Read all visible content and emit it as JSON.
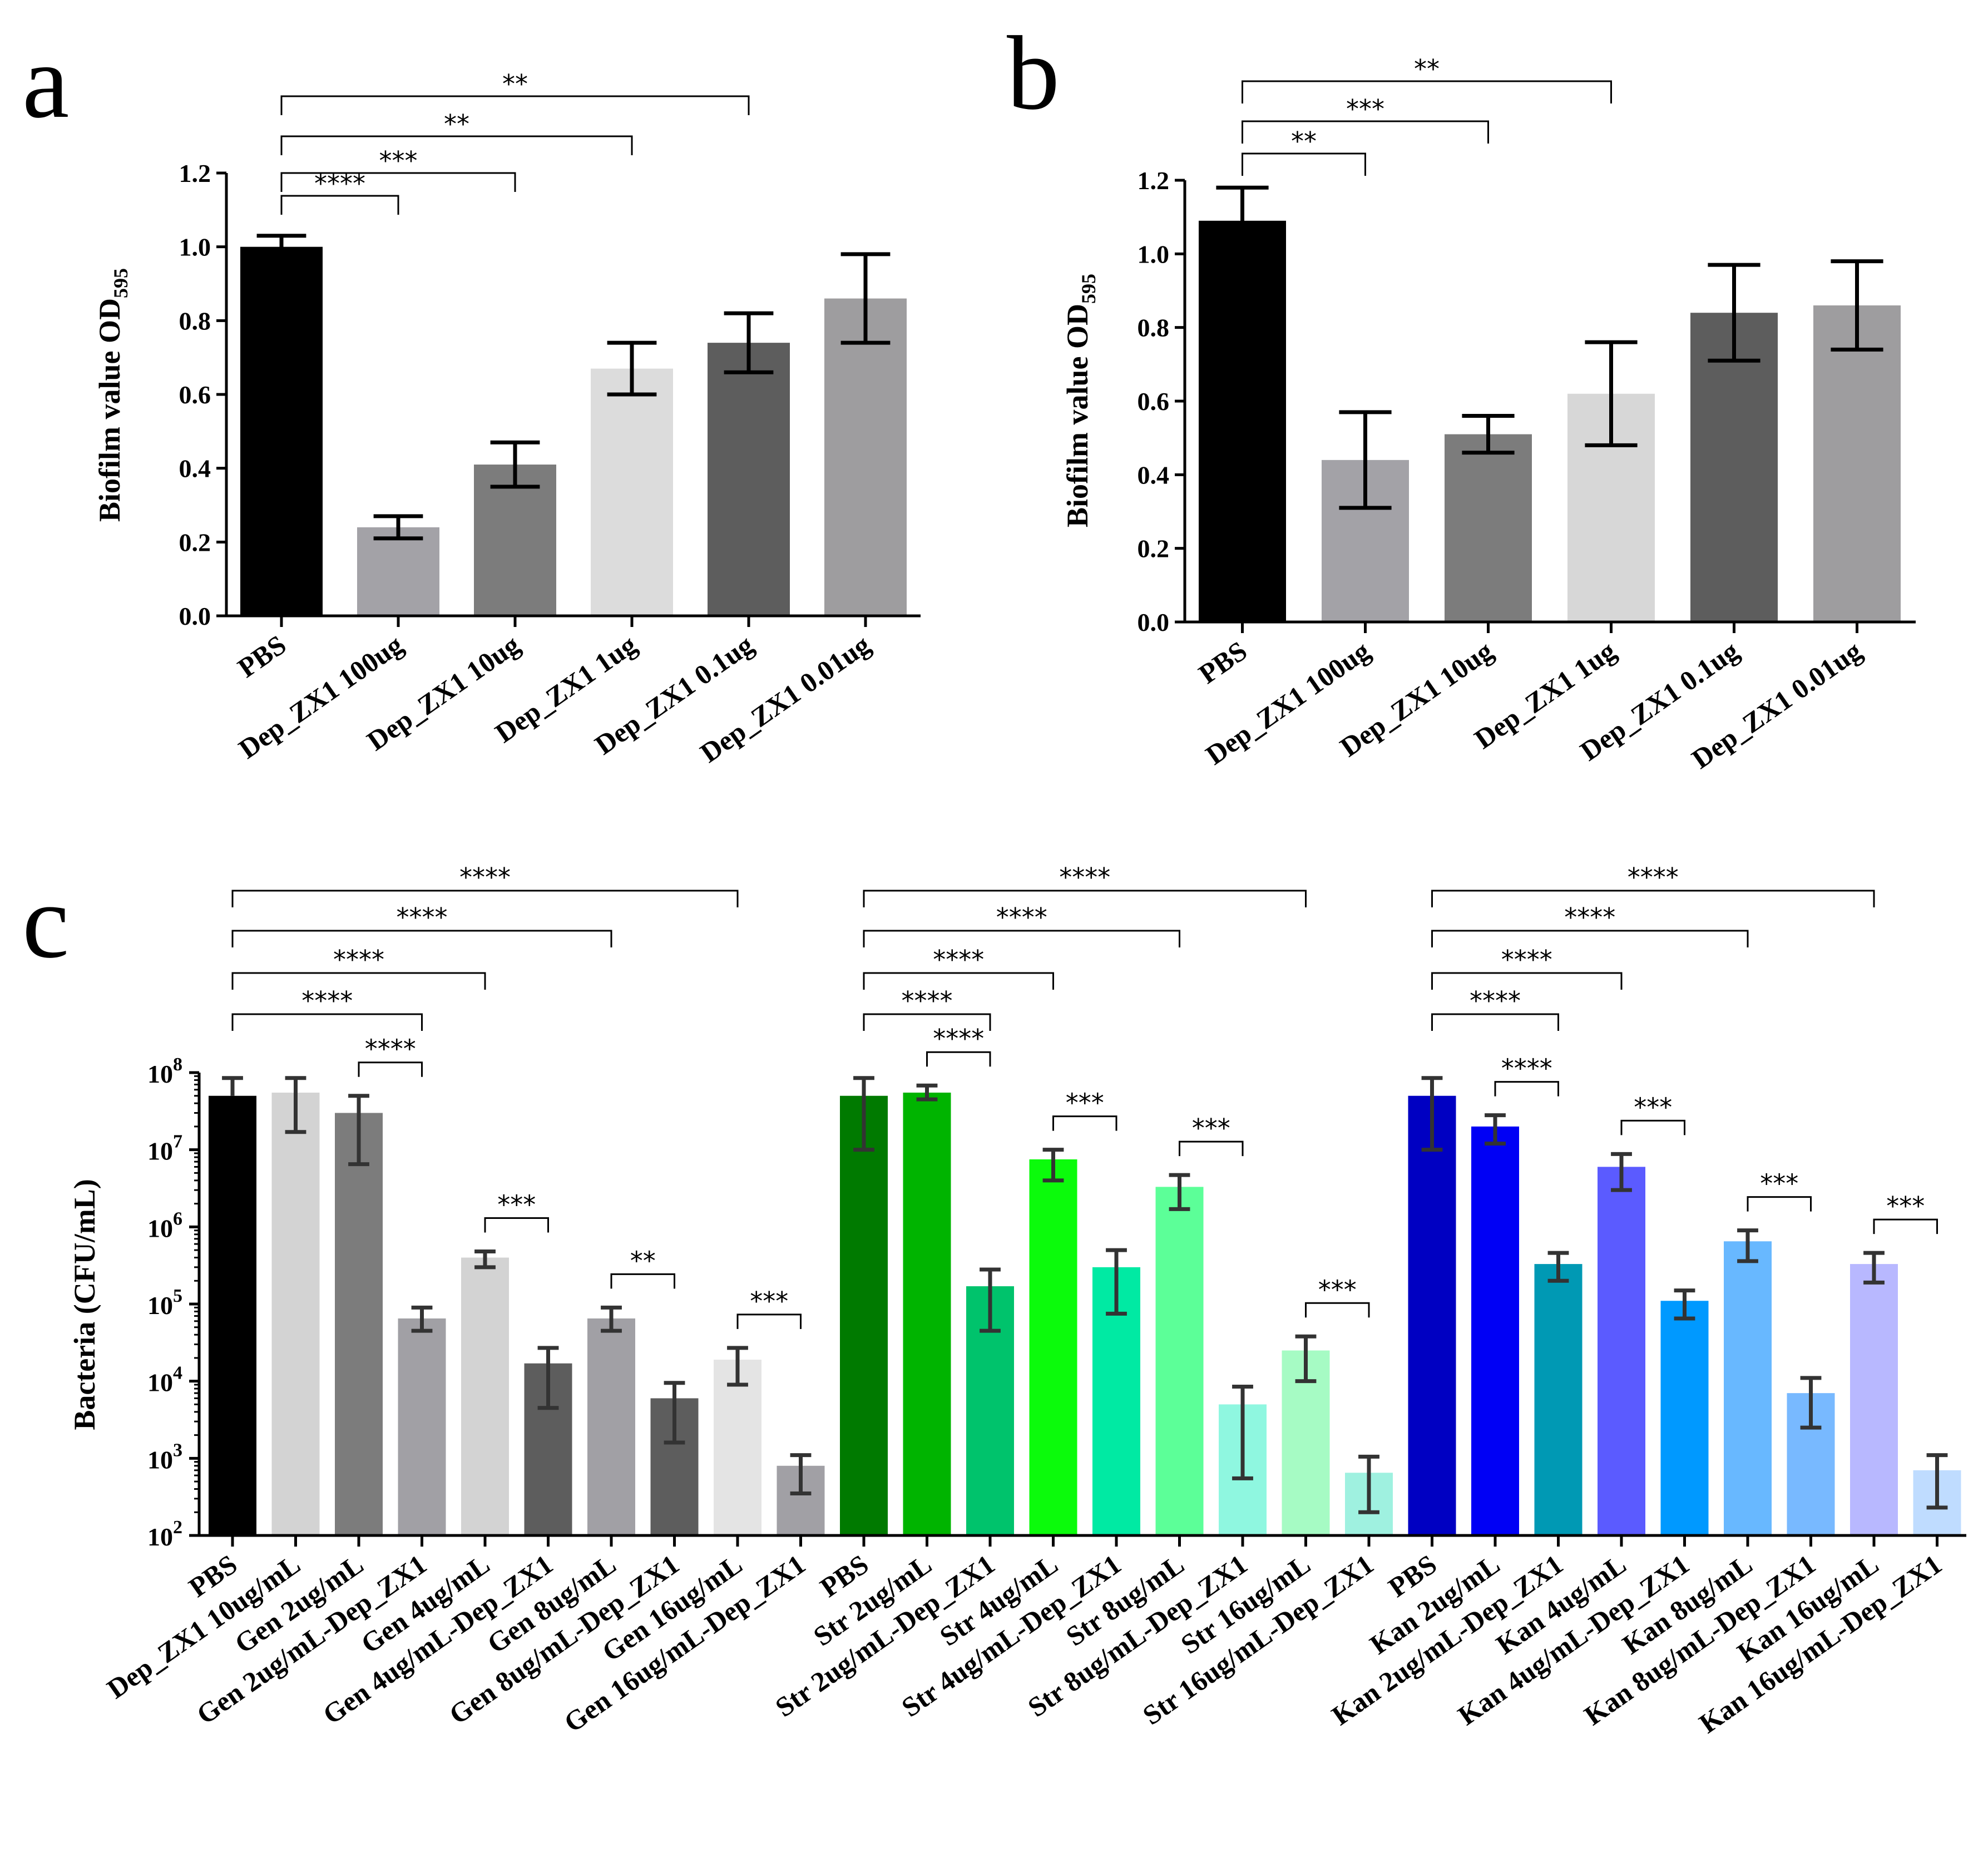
{
  "chart_data": [
    {
      "panel": "a",
      "type": "bar",
      "ylabel": "Biofilm value OD",
      "ylabel_subscript": "595",
      "ylim": [
        0,
        1.2
      ],
      "yticks": [
        "0.0",
        "0.2",
        "0.4",
        "0.6",
        "0.8",
        "1.0",
        "1.2"
      ],
      "categories": [
        "PBS",
        "Dep_ZX1 100ug",
        "Dep_ZX1 10ug",
        "Dep_ZX1 1ug",
        "Dep_ZX1 0.1ug",
        "Dep_ZX1 0.01ug"
      ],
      "values": [
        1.0,
        0.24,
        0.41,
        0.67,
        0.74,
        0.86
      ],
      "errors": [
        0.03,
        0.03,
        0.06,
        0.07,
        0.08,
        0.12
      ],
      "colors": [
        "#000000",
        "#a3a2a7",
        "#7c7c7c",
        "#dcdcdc",
        "#5d5d5d",
        "#9e9d9f"
      ],
      "comparisons": [
        {
          "from": 0,
          "to": 1,
          "label": "****"
        },
        {
          "from": 0,
          "to": 2,
          "label": "***"
        },
        {
          "from": 0,
          "to": 3,
          "label": "**"
        },
        {
          "from": 0,
          "to": 4,
          "label": "**"
        }
      ]
    },
    {
      "panel": "b",
      "type": "bar",
      "ylabel": "Biofilm value OD",
      "ylabel_subscript": "595",
      "ylim": [
        0,
        1.2
      ],
      "yticks": [
        "0.0",
        "0.2",
        "0.4",
        "0.6",
        "0.8",
        "1.0",
        "1.2"
      ],
      "categories": [
        "PBS",
        "Dep_ZX1 100ug",
        "Dep_ZX1 10ug",
        "Dep_ZX1 1ug",
        "Dep_ZX1 0.1ug",
        "Dep_ZX1 0.01ug"
      ],
      "values": [
        1.09,
        0.44,
        0.51,
        0.62,
        0.84,
        0.86
      ],
      "errors": [
        0.09,
        0.13,
        0.05,
        0.14,
        0.13,
        0.12
      ],
      "colors": [
        "#000000",
        "#a3a2a7",
        "#7c7c7c",
        "#d7d7d7",
        "#5d5d5d",
        "#9e9d9f"
      ],
      "comparisons": [
        {
          "from": 0,
          "to": 1,
          "label": "**"
        },
        {
          "from": 0,
          "to": 2,
          "label": "***"
        },
        {
          "from": 0,
          "to": 3,
          "label": "**"
        }
      ]
    },
    {
      "panel": "c",
      "type": "bar",
      "yscale": "log",
      "ylabel": "Bacteria (CFU/mL)",
      "ylim": [
        100,
        100000000
      ],
      "ytick_base": "10",
      "ytick_exponents": [
        "2",
        "3",
        "4",
        "5",
        "6",
        "7",
        "8"
      ],
      "categories": [
        "PBS",
        "Dep_ZX1 10ug/mL",
        "Gen 2ug/mL",
        "Gen 2ug/mL-Dep_ZX1",
        "Gen 4ug/mL",
        "Gen 4ug/mL-Dep_ZX1",
        "Gen 8ug/mL",
        "Gen 8ug/mL-Dep_ZX1",
        "Gen 16ug/mL",
        "Gen 16ug/mL-Dep_ZX1",
        "PBS",
        "Str 2ug/mL",
        "Str 2ug/mL-Dep_ZX1",
        "Str 4ug/mL",
        "Str 4ug/mL-Dep_ZX1",
        "Str 8ug/mL",
        "Str 8ug/mL-Dep_ZX1",
        "Str 16ug/mL",
        "Str 16ug/mL-Dep_ZX1",
        "PBS",
        "Kan 2ug/mL",
        "Kan 2ug/mL-Dep_ZX1",
        "Kan 4ug/mL",
        "Kan 4ug/mL-Dep_ZX1",
        "Kan 8ug/mL",
        "Kan 8ug/mL-Dep_ZX1",
        "Kan 16ug/mL",
        "Kan 16ug/mL-Dep_ZX1"
      ],
      "values": [
        50000000,
        55000000,
        30000000,
        65000,
        400000,
        17000,
        65000,
        6000,
        19000,
        800,
        50000000,
        55000000,
        170000,
        7500000,
        300000,
        3300000,
        5000,
        25000,
        650,
        50000000,
        20000000,
        330000,
        6000000,
        110000,
        650000,
        7000,
        330000,
        700
      ],
      "error_low": [
        null,
        17000000,
        6500000,
        45000,
        300000,
        4500,
        45000,
        1600,
        9000,
        350,
        10000000,
        45000000,
        45000,
        4000000,
        75000,
        1700000,
        550,
        10000,
        200,
        10000000,
        12000000,
        200000,
        3000000,
        65000,
        360000,
        2500,
        190000,
        230
      ],
      "error_high": [
        85000000,
        85000000,
        50000000,
        90000,
        480000,
        27000,
        90000,
        9500,
        27000,
        1100,
        85000000,
        68000000,
        280000,
        10000000,
        500000,
        4700000,
        8500,
        38000,
        1050,
        85000000,
        28000000,
        460000,
        8800000,
        150000,
        900000,
        11000,
        460000,
        1100
      ],
      "colors": [
        "#000000",
        "#d3d3d3",
        "#7c7c7c",
        "#a1a0a5",
        "#d3d3d3",
        "#5d5d5d",
        "#a1a0a5",
        "#5d5d5d",
        "#e4e4e4",
        "#a1a0a5",
        "#007a00",
        "#00b400",
        "#00c36c",
        "#0bfb0b",
        "#00eaa3",
        "#5cff98",
        "#8ff7e0",
        "#a6fbc4",
        "#9ff1e0",
        "#0000c2",
        "#0000f5",
        "#0099b4",
        "#5b5bff",
        "#0099ff",
        "#68b8ff",
        "#78b9ff",
        "#b8b8ff",
        "#bfdcff"
      ],
      "group_starts": [
        0,
        10,
        19
      ],
      "comparisons": [
        {
          "from": 0,
          "to": 3,
          "label": "****"
        },
        {
          "from": 0,
          "to": 4,
          "label": "****"
        },
        {
          "from": 0,
          "to": 6,
          "label": "****"
        },
        {
          "from": 0,
          "to": 8,
          "label": "****"
        },
        {
          "from": 2,
          "to": 3,
          "label": "****"
        },
        {
          "from": 4,
          "to": 5,
          "label": "***"
        },
        {
          "from": 6,
          "to": 7,
          "label": "**"
        },
        {
          "from": 8,
          "to": 9,
          "label": "***"
        },
        {
          "from": 10,
          "to": 12,
          "label": "****"
        },
        {
          "from": 10,
          "to": 13,
          "label": "****"
        },
        {
          "from": 10,
          "to": 15,
          "label": "****"
        },
        {
          "from": 10,
          "to": 17,
          "label": "****"
        },
        {
          "from": 11,
          "to": 12,
          "label": "****"
        },
        {
          "from": 13,
          "to": 14,
          "label": "***"
        },
        {
          "from": 15,
          "to": 16,
          "label": "***"
        },
        {
          "from": 17,
          "to": 18,
          "label": "***"
        },
        {
          "from": 19,
          "to": 21,
          "label": "****"
        },
        {
          "from": 19,
          "to": 22,
          "label": "****"
        },
        {
          "from": 19,
          "to": 24,
          "label": "****"
        },
        {
          "from": 19,
          "to": 26,
          "label": "****"
        },
        {
          "from": 20,
          "to": 21,
          "label": "****"
        },
        {
          "from": 22,
          "to": 23,
          "label": "***"
        },
        {
          "from": 24,
          "to": 25,
          "label": "***"
        },
        {
          "from": 26,
          "to": 27,
          "label": "***"
        }
      ]
    }
  ]
}
